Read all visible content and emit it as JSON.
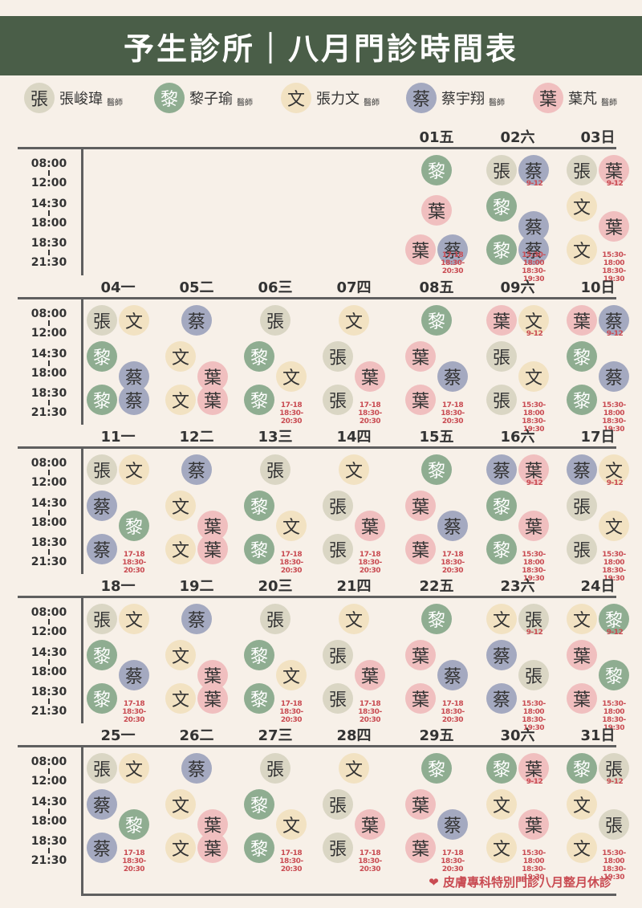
{
  "title": "予生診所｜八月門診時間表",
  "legend": [
    {
      "char": "張",
      "name": "張峻瑋",
      "title": "醫師",
      "color": "zhang"
    },
    {
      "char": "黎",
      "name": "黎子瑜",
      "title": "醫師",
      "color": "li"
    },
    {
      "char": "文",
      "name": "張力文",
      "title": "醫師",
      "color": "wen"
    },
    {
      "char": "蔡",
      "name": "蔡宇翔",
      "title": "醫師",
      "color": "cai"
    },
    {
      "char": "葉",
      "name": "葉芃",
      "title": "醫師",
      "color": "ye"
    }
  ],
  "colors": {
    "header": "#4a5e48",
    "zhang": "#dad6c4",
    "li": "#8fad91",
    "wen": "#f2e2c2",
    "cai": "#a4a9c0",
    "ye": "#f0bfbf",
    "note": "#c94b52"
  },
  "time_labels": [
    [
      "08:00",
      "12:00"
    ],
    [
      "14:30",
      "18:00"
    ],
    [
      "18:30",
      "21:30"
    ]
  ],
  "weeks": [
    {
      "days": [
        null,
        null,
        null,
        null,
        {
          "label": "01五",
          "slots": [
            [
              "li"
            ],
            [
              "ye"
            ],
            [
              "ye",
              "cai"
            ]
          ],
          "notes": [
            null,
            null,
            "17-18\n18:30-20:30"
          ]
        },
        {
          "label": "02六",
          "slots": [
            [
              "zhang",
              "cai"
            ],
            [
              "li",
              "cai"
            ],
            [
              "li",
              "cai"
            ]
          ],
          "notes": [
            "9-12",
            null,
            "15:30-18:00\n18:30-19:30"
          ]
        },
        {
          "label": "03日",
          "slots": [
            [
              "zhang",
              "ye"
            ],
            [
              "wen",
              "ye"
            ],
            [
              "wen"
            ]
          ],
          "notes": [
            "9-12",
            null,
            "15:30-18:00\n18:30-19:30"
          ]
        }
      ]
    },
    {
      "days": [
        {
          "label": "04一",
          "slots": [
            [
              "zhang",
              "wen"
            ],
            [
              "li",
              "cai"
            ],
            [
              "li",
              "cai"
            ]
          ],
          "notes": [
            null,
            null,
            null
          ]
        },
        {
          "label": "05二",
          "slots": [
            [
              "cai"
            ],
            [
              "wen",
              "ye"
            ],
            [
              "wen",
              "ye"
            ]
          ],
          "notes": [
            null,
            null,
            null
          ]
        },
        {
          "label": "06三",
          "slots": [
            [
              "zhang"
            ],
            [
              "li",
              "wen"
            ],
            [
              "li"
            ]
          ],
          "notes": [
            null,
            null,
            "17-18\n18:30-20:30"
          ]
        },
        {
          "label": "07四",
          "slots": [
            [
              "wen"
            ],
            [
              "zhang",
              "ye"
            ],
            [
              "zhang"
            ]
          ],
          "notes": [
            null,
            null,
            "17-18\n18:30-20:30"
          ]
        },
        {
          "label": "08五",
          "slots": [
            [
              "li"
            ],
            [
              "ye",
              "cai"
            ],
            [
              "ye"
            ]
          ],
          "notes": [
            null,
            null,
            "17-18\n18:30-20:30"
          ]
        },
        {
          "label": "09六",
          "slots": [
            [
              "ye",
              "wen"
            ],
            [
              "zhang",
              "wen"
            ],
            [
              "zhang"
            ]
          ],
          "notes": [
            "9-12",
            null,
            "15:30-18:00\n18:30-19:30"
          ]
        },
        {
          "label": "10日",
          "slots": [
            [
              "ye",
              "cai"
            ],
            [
              "li",
              "cai"
            ],
            [
              "li"
            ]
          ],
          "notes": [
            "9-12",
            null,
            "15:30-18:00\n18:30-19:30"
          ]
        }
      ]
    },
    {
      "days": [
        {
          "label": "11一",
          "slots": [
            [
              "zhang",
              "wen"
            ],
            [
              "cai",
              "li"
            ],
            [
              "cai"
            ]
          ],
          "notes": [
            null,
            null,
            "17-18\n18:30-20:30"
          ]
        },
        {
          "label": "12二",
          "slots": [
            [
              "cai"
            ],
            [
              "wen",
              "ye"
            ],
            [
              "wen",
              "ye"
            ]
          ],
          "notes": [
            null,
            null,
            null
          ]
        },
        {
          "label": "13三",
          "slots": [
            [
              "zhang"
            ],
            [
              "li",
              "wen"
            ],
            [
              "li"
            ]
          ],
          "notes": [
            null,
            null,
            "17-18\n18:30-20:30"
          ]
        },
        {
          "label": "14四",
          "slots": [
            [
              "wen"
            ],
            [
              "zhang",
              "ye"
            ],
            [
              "zhang"
            ]
          ],
          "notes": [
            null,
            null,
            "17-18\n18:30-20:30"
          ]
        },
        {
          "label": "15五",
          "slots": [
            [
              "li"
            ],
            [
              "ye",
              "cai"
            ],
            [
              "ye"
            ]
          ],
          "notes": [
            null,
            null,
            "17-18\n18:30-20:30"
          ]
        },
        {
          "label": "16六",
          "slots": [
            [
              "cai",
              "ye"
            ],
            [
              "li",
              "ye"
            ],
            [
              "li"
            ]
          ],
          "notes": [
            "9-12",
            null,
            "15:30-18:00\n18:30-19:30"
          ]
        },
        {
          "label": "17日",
          "slots": [
            [
              "cai",
              "wen"
            ],
            [
              "zhang",
              "wen"
            ],
            [
              "zhang"
            ]
          ],
          "notes": [
            "9-12",
            null,
            "15:30-18:00\n18:30-19:30"
          ]
        }
      ]
    },
    {
      "days": [
        {
          "label": "18一",
          "slots": [
            [
              "zhang",
              "wen"
            ],
            [
              "li",
              "cai"
            ],
            [
              "li"
            ]
          ],
          "notes": [
            null,
            null,
            "17-18\n18:30-20:30"
          ]
        },
        {
          "label": "19二",
          "slots": [
            [
              "cai"
            ],
            [
              "wen",
              "ye"
            ],
            [
              "wen",
              "ye"
            ]
          ],
          "notes": [
            null,
            null,
            null
          ]
        },
        {
          "label": "20三",
          "slots": [
            [
              "zhang"
            ],
            [
              "li",
              "wen"
            ],
            [
              "li"
            ]
          ],
          "notes": [
            null,
            null,
            "17-18\n18:30-20:30"
          ]
        },
        {
          "label": "21四",
          "slots": [
            [
              "wen"
            ],
            [
              "zhang",
              "ye"
            ],
            [
              "zhang"
            ]
          ],
          "notes": [
            null,
            null,
            "17-18\n18:30-20:30"
          ]
        },
        {
          "label": "22五",
          "slots": [
            [
              "li"
            ],
            [
              "ye",
              "cai"
            ],
            [
              "ye"
            ]
          ],
          "notes": [
            null,
            null,
            "17-18\n18:30-20:30"
          ]
        },
        {
          "label": "23六",
          "slots": [
            [
              "wen",
              "zhang"
            ],
            [
              "cai",
              "zhang"
            ],
            [
              "cai"
            ]
          ],
          "notes": [
            "9-12",
            null,
            "15:30-18:00\n18:30-19:30"
          ]
        },
        {
          "label": "24日",
          "slots": [
            [
              "wen",
              "li"
            ],
            [
              "ye",
              "li"
            ],
            [
              "ye"
            ]
          ],
          "notes": [
            "9-12",
            null,
            "15:30-18:00\n18:30-19:30"
          ]
        }
      ]
    },
    {
      "days": [
        {
          "label": "25一",
          "slots": [
            [
              "zhang",
              "wen"
            ],
            [
              "cai",
              "li"
            ],
            [
              "cai"
            ]
          ],
          "notes": [
            null,
            null,
            "17-18\n18:30-20:30"
          ]
        },
        {
          "label": "26二",
          "slots": [
            [
              "cai"
            ],
            [
              "wen",
              "ye"
            ],
            [
              "wen",
              "ye"
            ]
          ],
          "notes": [
            null,
            null,
            null
          ]
        },
        {
          "label": "27三",
          "slots": [
            [
              "zhang"
            ],
            [
              "li",
              "wen"
            ],
            [
              "li"
            ]
          ],
          "notes": [
            null,
            null,
            "17-18\n18:30-20:30"
          ]
        },
        {
          "label": "28四",
          "slots": [
            [
              "wen"
            ],
            [
              "zhang",
              "ye"
            ],
            [
              "zhang"
            ]
          ],
          "notes": [
            null,
            null,
            "17-18\n18:30-20:30"
          ]
        },
        {
          "label": "29五",
          "slots": [
            [
              "li"
            ],
            [
              "ye",
              "cai"
            ],
            [
              "ye"
            ]
          ],
          "notes": [
            null,
            null,
            "17-18\n18:30-20:30"
          ]
        },
        {
          "label": "30六",
          "slots": [
            [
              "li",
              "ye"
            ],
            [
              "wen",
              "ye"
            ],
            [
              "wen"
            ]
          ],
          "notes": [
            "9-12",
            null,
            "15:30-18:00\n18:30-19:30"
          ]
        },
        {
          "label": "31日",
          "slots": [
            [
              "li",
              "zhang"
            ],
            [
              "wen",
              "zhang"
            ],
            [
              "wen"
            ]
          ],
          "notes": [
            "9-12",
            null,
            "15:30-18:00\n18:30-19:30"
          ]
        }
      ]
    }
  ],
  "footer": {
    "icon": "heart-icon",
    "text": "皮膚專科特別門診八月整月休診"
  }
}
